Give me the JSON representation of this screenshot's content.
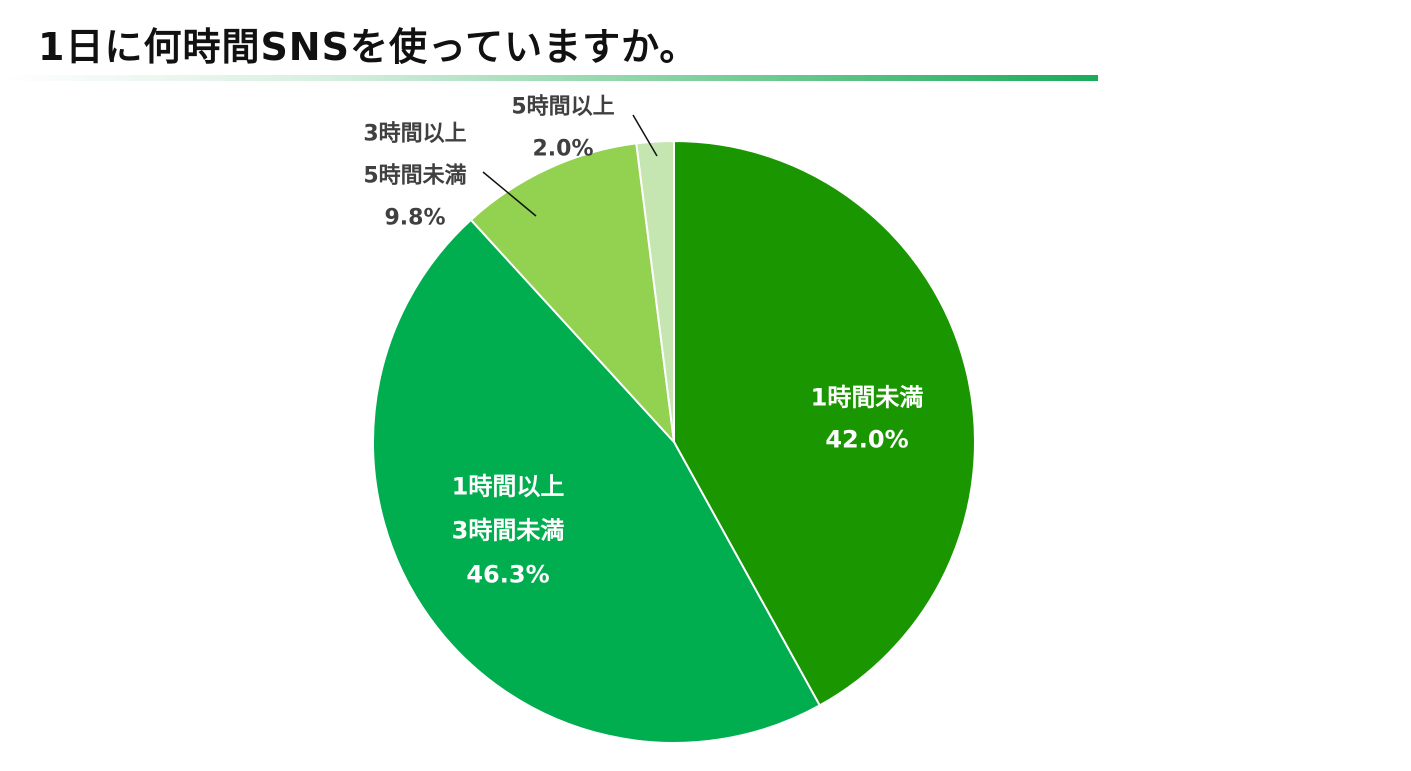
{
  "header": {
    "title": "1日に何時間SNSを使っていますか。"
  },
  "chart_data": {
    "type": "pie",
    "title": "1日に何時間SNSを使っていますか。",
    "start_angle_deg": 0,
    "direction": "clockwise",
    "slices": [
      {
        "label_lines": [
          "1時間未満"
        ],
        "value": 42.0,
        "display": "42.0%",
        "color": "#1a9600",
        "label_color": "#ffffff"
      },
      {
        "label_lines": [
          "1時間以上",
          "3時間未満"
        ],
        "value": 46.3,
        "display": "46.3%",
        "color": "#00ad4f",
        "label_color": "#ffffff"
      },
      {
        "label_lines": [
          "3時間以上",
          "5時間未満"
        ],
        "value": 9.8,
        "display": "9.8%",
        "color": "#93d150",
        "label_color": "#404040"
      },
      {
        "label_lines": [
          "5時間以上"
        ],
        "value": 2.0,
        "display": "2.0%",
        "color": "#c6e6b1",
        "label_color": "#404040"
      }
    ]
  }
}
